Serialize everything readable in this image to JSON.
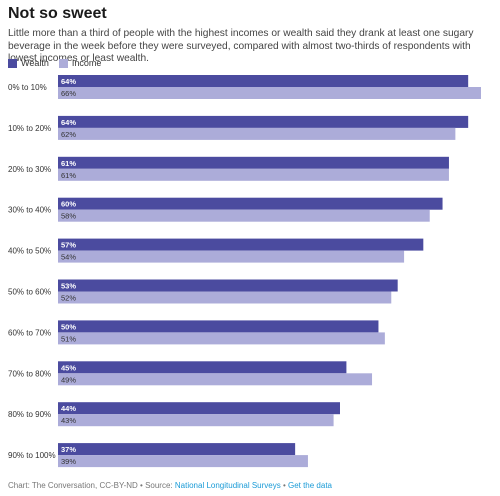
{
  "title": "Not so sweet",
  "subtitle": "Little more than a third of people with the highest incomes or wealth said they drank at least one sugary beverage in the week before they were surveyed, compared with almost two-thirds of respondents with lowest incomes or least wealth.",
  "footer": {
    "prefix": "Chart: The Conversation, CC-BY-ND • Source: ",
    "source_link": "National Longitudinal Surveys",
    "separator": " • ",
    "data_link": "Get the data"
  },
  "colors": {
    "wealth": "#4b4b9f",
    "income": "#acacd9"
  },
  "chart_data": {
    "type": "bar",
    "orientation": "horizontal",
    "legend_position": "top-left",
    "grid": false,
    "categories": [
      "0% to 10%",
      "10% to 20%",
      "20% to 30%",
      "30% to 40%",
      "40% to 50%",
      "50% to 60%",
      "60% to 70%",
      "70% to 80%",
      "80% to 90%",
      "90% to 100%"
    ],
    "series": [
      {
        "name": "Wealth",
        "values": [
          64,
          64,
          61,
          60,
          57,
          53,
          50,
          45,
          44,
          37
        ],
        "labels": [
          "64%",
          "64%",
          "61%",
          "60%",
          "57%",
          "53%",
          "50%",
          "45%",
          "44%",
          "37%"
        ]
      },
      {
        "name": "Income",
        "values": [
          66,
          62,
          61,
          58,
          54,
          52,
          51,
          49,
          43,
          39
        ],
        "labels": [
          "66%",
          "62%",
          "61%",
          "58%",
          "54%",
          "52%",
          "51%",
          "49%",
          "43%",
          "39%"
        ]
      }
    ],
    "xlim": [
      0,
      66
    ]
  }
}
